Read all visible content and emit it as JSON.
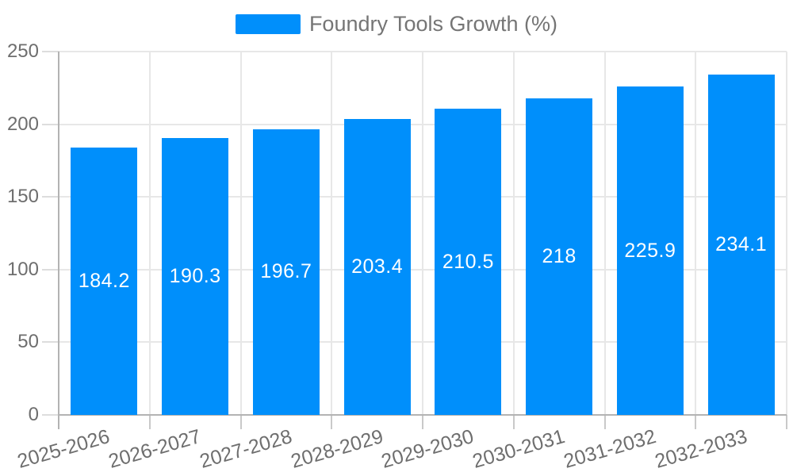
{
  "chart_data": {
    "type": "bar",
    "title": "Foundry Tools Growth (%)",
    "legend_position": "top",
    "grid": true,
    "categories": [
      "2025-2026",
      "2026-2027",
      "2027-2028",
      "2028-2029",
      "2029-2030",
      "2030-2031",
      "2031-2032",
      "2032-2033"
    ],
    "series": [
      {
        "name": "Foundry Tools Growth (%)",
        "values": [
          184.2,
          190.3,
          196.7,
          203.4,
          210.5,
          218,
          225.9,
          234.1
        ]
      }
    ],
    "value_labels": [
      "184.2",
      "190.3",
      "196.7",
      "203.4",
      "210.5",
      "218",
      "225.9",
      "234.1"
    ],
    "xlabel": "",
    "ylabel": "",
    "ylim": [
      0,
      250
    ],
    "yticks": [
      0,
      50,
      100,
      150,
      200,
      250
    ],
    "ytick_labels": [
      "0",
      "50",
      "100",
      "150",
      "200",
      "250"
    ],
    "colors": {
      "bar": "#008FFB",
      "grid": "#e7e7e7",
      "axis": "#b3b3b3",
      "tick_x": "#c9c9c9",
      "tick_y": "#dddddd",
      "axis_label_text": "#6e6e6e",
      "legend_text": "#757575",
      "value_label_text": "#ffffff",
      "background": "#ffffff"
    }
  }
}
